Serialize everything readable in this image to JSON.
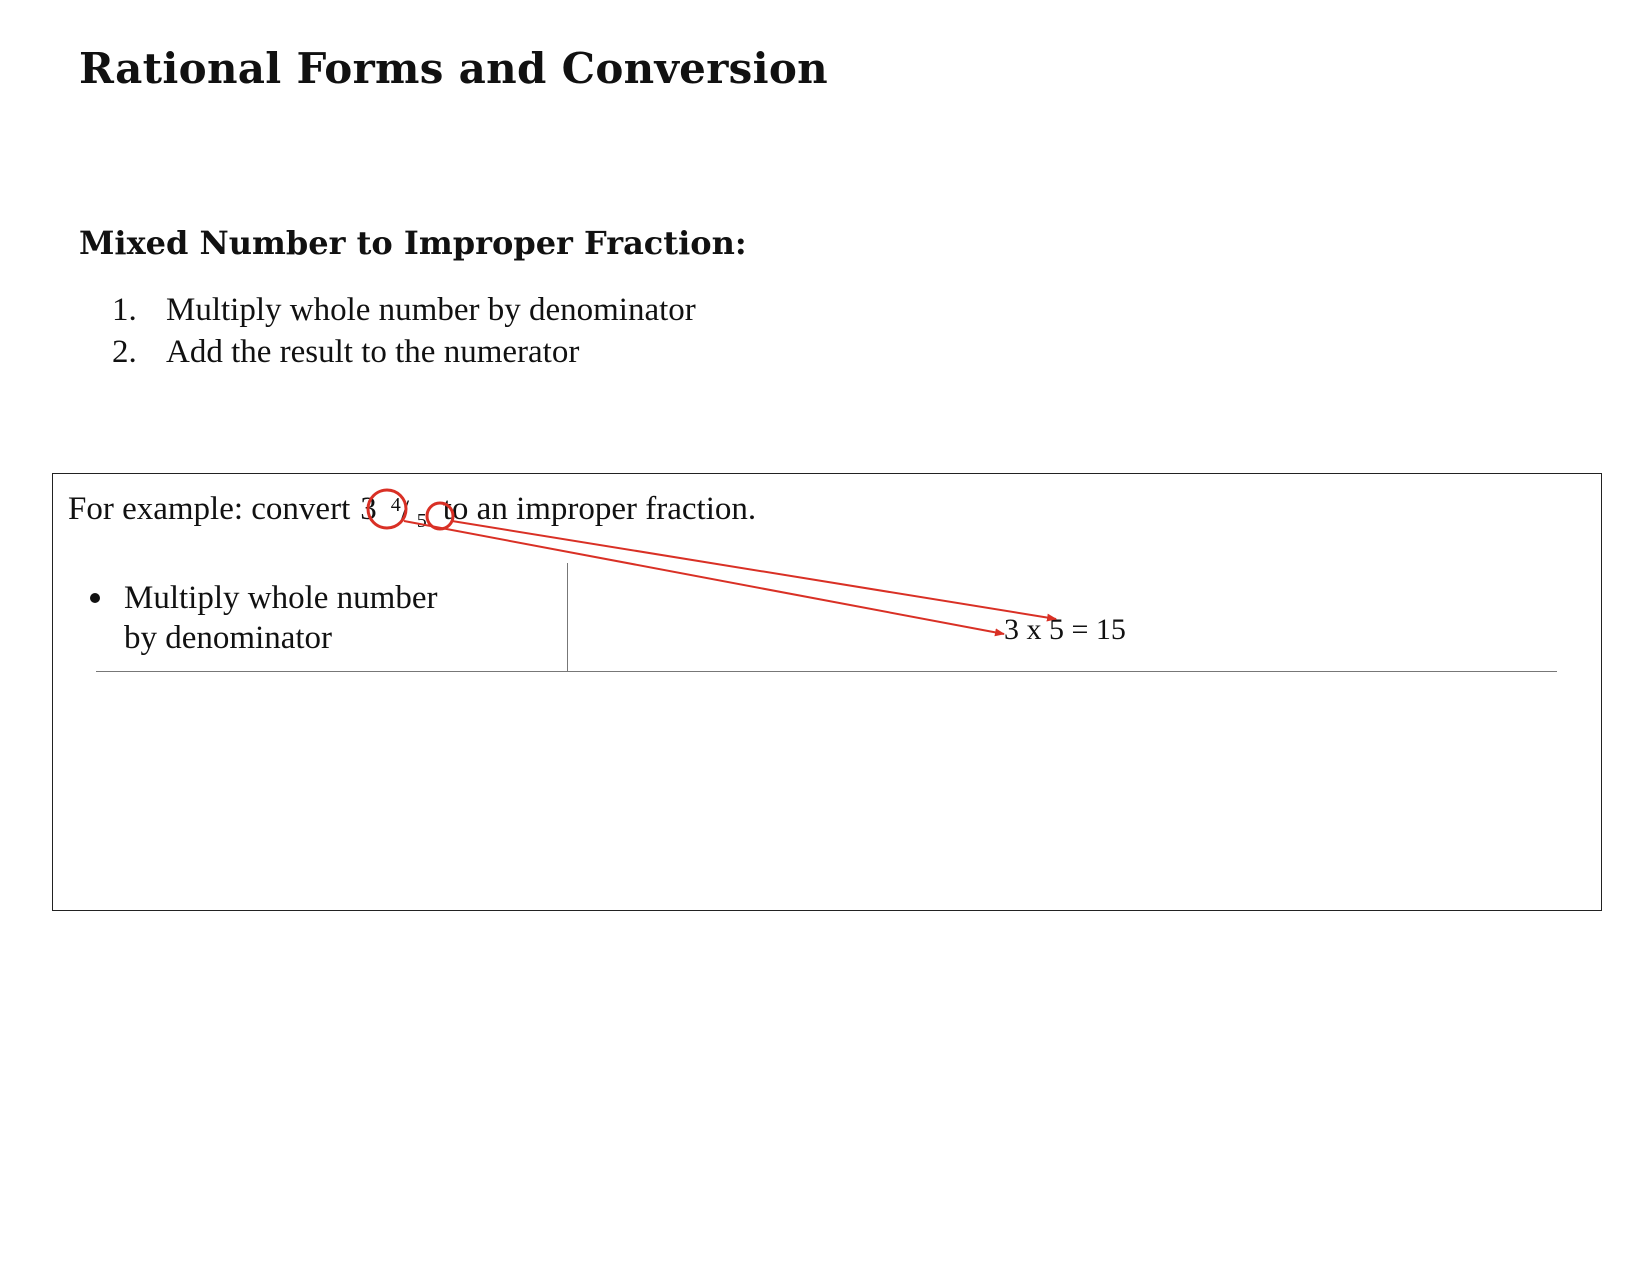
{
  "document": {
    "title": "Rational Forms and Conversion",
    "section_heading": "Mixed Number to Improper Fraction:",
    "steps": [
      {
        "number": "1.",
        "text": "Multiply whole number by denominator"
      },
      {
        "number": "2.",
        "text": "Add the result to the numerator"
      }
    ]
  },
  "example": {
    "prefix": "For example: convert",
    "whole": "3",
    "numerator": "4",
    "slash": "/",
    "denominator": "5",
    "suffix": "to an improper fraction.",
    "bullet": "Multiply whole number by denominator",
    "bullet_line1": "Multiply whole number",
    "bullet_line2": "by denominator",
    "equation": "3 x 5 = 15"
  },
  "annotations": {
    "color": "#d93025"
  }
}
